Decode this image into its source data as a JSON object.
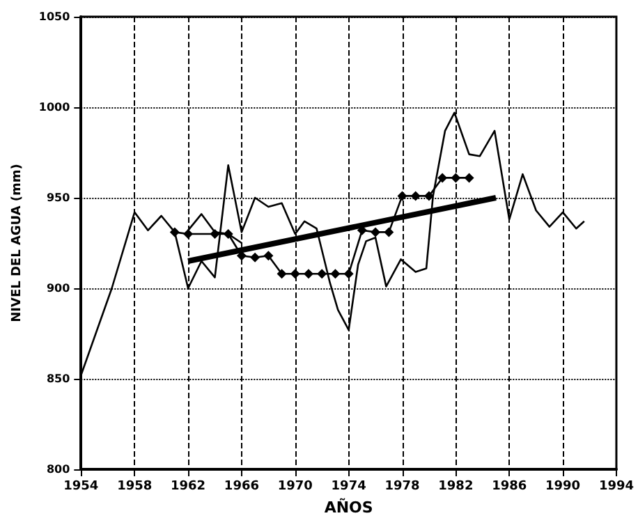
{
  "chart_data": {
    "type": "line",
    "xlabel": "AÑOS",
    "ylabel": "NIVEL DEL AGUA (mm)",
    "xlim": [
      1954,
      1994
    ],
    "xticks": [
      1954,
      1958,
      1962,
      1966,
      1970,
      1974,
      1978,
      1982,
      1986,
      1990,
      1994
    ],
    "ylim": [
      800,
      1050
    ],
    "yticks": [
      800,
      850,
      900,
      950,
      1000,
      1050
    ],
    "grid": true,
    "line_style": "solid",
    "series": [
      {
        "color": "#000000",
        "marker": "none",
        "x": [
          1954,
          1956.3,
          1958,
          1959,
          1960,
          1961,
          1962,
          1963,
          1964,
          1965,
          1966,
          1967,
          1968,
          1969,
          1970,
          1970.7,
          1971.6,
          1972.6,
          1973.2,
          1974,
          1974.7,
          1975.3,
          1976,
          1976.8,
          1977.9,
          1979,
          1979.8,
          1980.3,
          1981.2,
          1981.9,
          1983,
          1983.8,
          1984.9,
          1986,
          1987,
          1988,
          1989,
          1990,
          1991,
          1991.6
        ],
        "values": [
          852,
          900,
          942,
          932,
          940,
          931,
          900,
          915,
          906,
          968,
          931,
          950,
          945,
          947,
          930,
          937,
          933,
          903,
          888,
          877,
          913,
          926,
          928,
          901,
          916,
          909,
          911,
          951,
          987,
          997,
          974,
          973,
          987,
          938,
          963,
          943,
          934,
          942,
          933,
          937
        ]
      },
      {
        "color": "#000000",
        "marker": "none",
        "x": [
          1962,
          1963,
          1964,
          1965,
          1966
        ],
        "values": [
          932,
          941,
          931,
          930,
          925
        ]
      },
      {
        "color": "#000000",
        "marker": "diamond",
        "x": [
          1961,
          1962,
          1964,
          1965,
          1966,
          1967,
          1968,
          1969,
          1970,
          1971,
          1972,
          1973,
          1974,
          1975,
          1976,
          1977,
          1978,
          1979,
          1980,
          1981,
          1982,
          1983
        ],
        "values": [
          931,
          930,
          930,
          930,
          918,
          917,
          918,
          908,
          908,
          908,
          908,
          908,
          908,
          932,
          931,
          931,
          951,
          951,
          951,
          961,
          961,
          961
        ]
      },
      {
        "color": "#000000",
        "marker": "none",
        "x": [
          1962,
          1985
        ],
        "values": [
          915,
          950
        ]
      }
    ]
  }
}
